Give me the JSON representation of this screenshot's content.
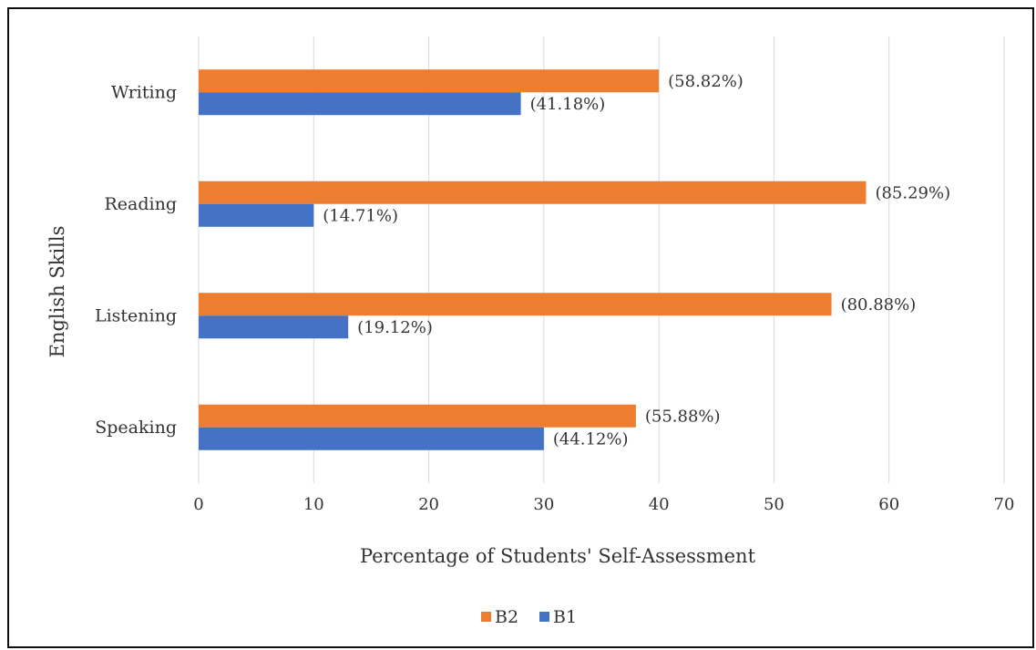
{
  "chart_data": {
    "type": "bar",
    "orientation": "horizontal",
    "categories": [
      "Writing",
      "Reading",
      "Listening",
      "Speaking"
    ],
    "series": [
      {
        "name": "B2",
        "color": "#ED7D31",
        "values": [
          40,
          58,
          55,
          38
        ],
        "labels": [
          "(58.82%)",
          "(85.29%)",
          "(80.88%)",
          "(55.88%)"
        ]
      },
      {
        "name": "B1",
        "color": "#4472C4",
        "values": [
          28,
          10,
          13,
          30
        ],
        "labels": [
          "(41.18%)",
          "(14.71%)",
          "(19.12%)",
          "(44.12%)"
        ]
      }
    ],
    "xlim": [
      0,
      70
    ],
    "xticks": [
      0,
      10,
      20,
      30,
      40,
      50,
      60,
      70
    ],
    "xlabel": "Percentage of Students' Self-Assessment",
    "ylabel": "English Skills",
    "grid": true,
    "legend_position": "bottom"
  }
}
